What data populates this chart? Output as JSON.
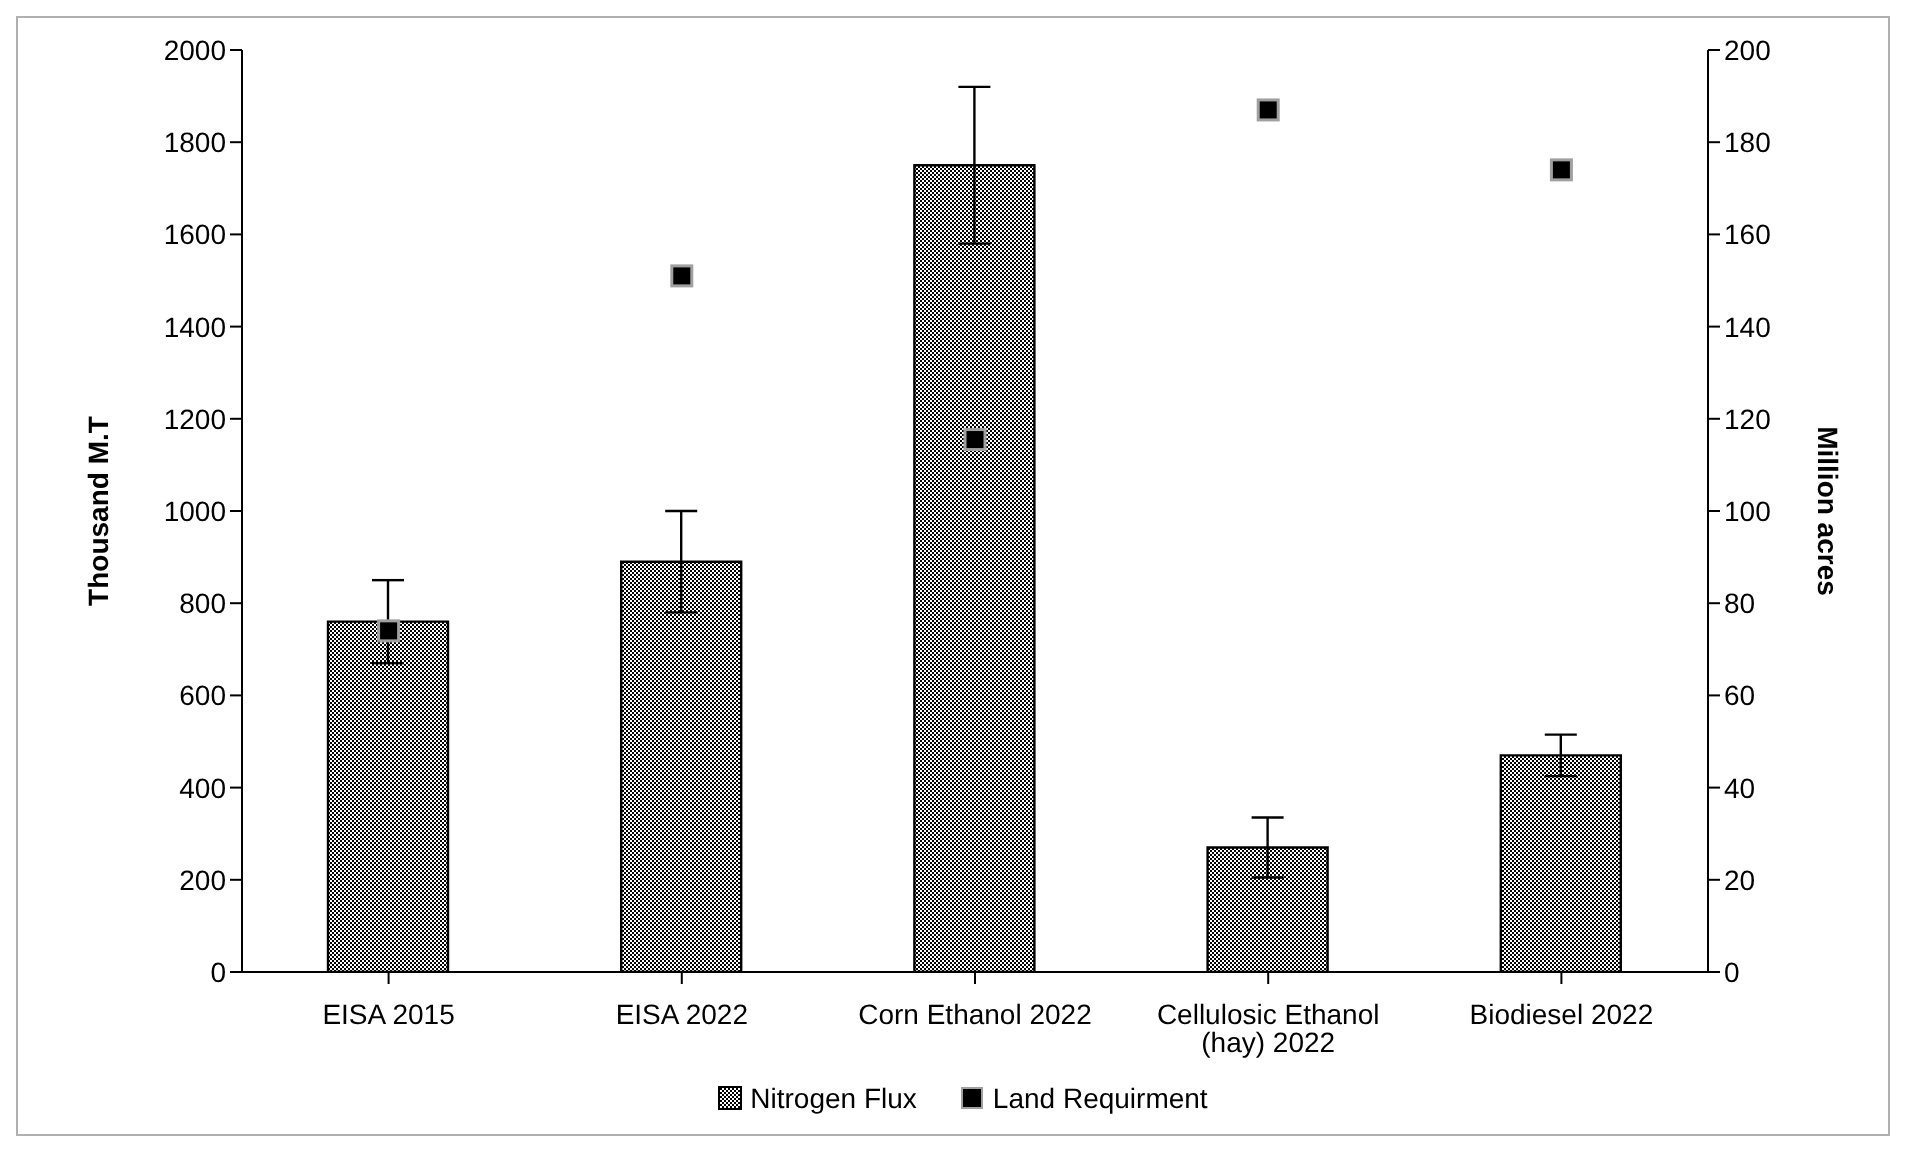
{
  "chart_data": {
    "type": "bar",
    "categories": [
      "EISA 2015",
      "EISA 2022",
      "Corn Ethanol 2022",
      "Cellulosic Ethanol (hay) 2022",
      "Biodiesel 2022"
    ],
    "series": [
      {
        "name": "Nitrogen Flux",
        "color": "#000000",
        "values": [
          760,
          890,
          1750,
          270,
          470
        ],
        "errors": [
          90,
          110,
          170,
          65,
          45
        ]
      },
      {
        "name": "Land Requirment",
        "type": "scatter",
        "axis": "y2",
        "color": "#000000",
        "values": [
          74,
          151,
          115.5,
          187,
          174
        ]
      }
    ],
    "ylabel": "Thousand M.T",
    "y2label": "Million acres",
    "ylim": [
      0,
      2000
    ],
    "yticks": [
      0,
      200,
      400,
      600,
      800,
      1000,
      1200,
      1400,
      1600,
      1800,
      2000
    ],
    "y2lim": [
      0,
      200
    ],
    "y2ticks": [
      0,
      20,
      40,
      60,
      80,
      100,
      120,
      140,
      160,
      180,
      200
    ],
    "grid": false,
    "legend": "bottom",
    "marker": "square"
  }
}
